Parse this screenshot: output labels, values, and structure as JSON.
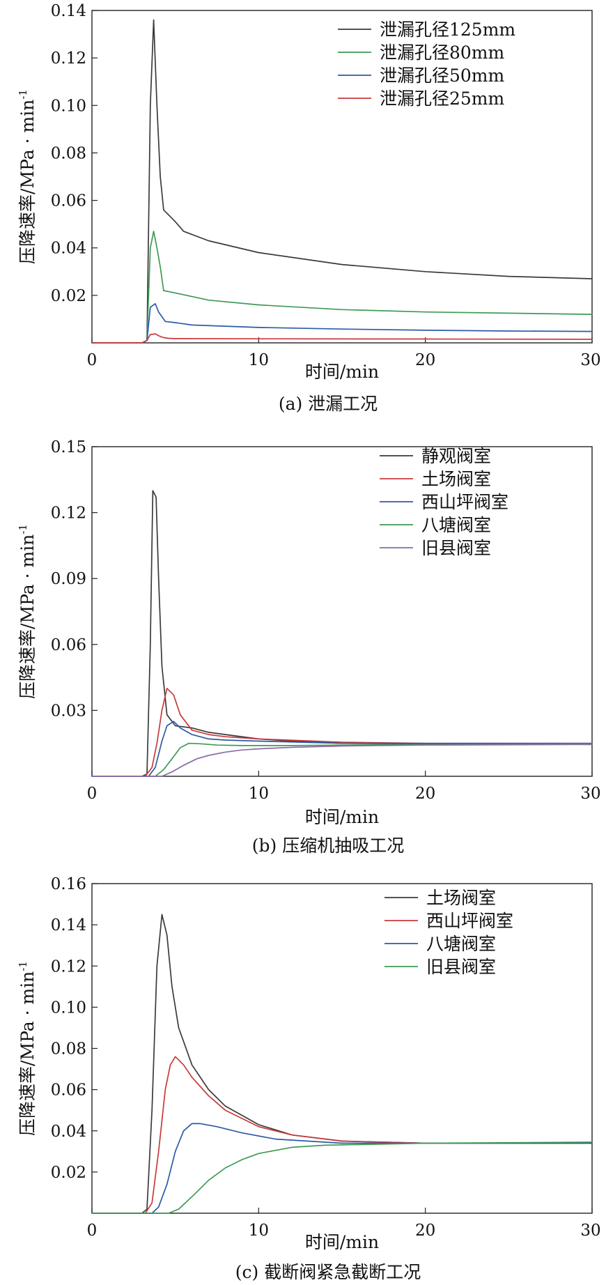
{
  "chart_data": [
    {
      "type": "line",
      "caption": "(a) 泄漏工况",
      "xlabel": "时间/min",
      "ylabel": "压降速率/MPa · min",
      "ylabel_sup": "-1",
      "xlim": [
        0,
        30
      ],
      "ylim": [
        0,
        0.14
      ],
      "xticks": [
        0,
        10,
        20,
        30
      ],
      "yticks": [
        0.02,
        0.04,
        0.06,
        0.08,
        0.1,
        0.12,
        0.14
      ],
      "ytick_labels": [
        "0.02",
        "0.04",
        "0.06",
        "0.08",
        "0.10",
        "0.12",
        "0.14"
      ],
      "legend_position": "top-right",
      "series": [
        {
          "name": "泄漏孔径125mm",
          "color": "#3a3a3a",
          "x": [
            0,
            3.0,
            3.3,
            3.5,
            3.7,
            3.9,
            4.1,
            4.3,
            5,
            5.5,
            7,
            10,
            15,
            20,
            25,
            30
          ],
          "y": [
            0,
            0,
            0.001,
            0.1,
            0.136,
            0.1,
            0.07,
            0.056,
            0.051,
            0.047,
            0.043,
            0.038,
            0.033,
            0.03,
            0.028,
            0.027
          ]
        },
        {
          "name": "泄漏孔径80mm",
          "color": "#3f9a55",
          "x": [
            0,
            3.0,
            3.3,
            3.5,
            3.7,
            3.9,
            4.1,
            4.3,
            5,
            7,
            10,
            15,
            20,
            25,
            30
          ],
          "y": [
            0,
            0,
            0.001,
            0.04,
            0.047,
            0.04,
            0.032,
            0.022,
            0.021,
            0.018,
            0.016,
            0.014,
            0.013,
            0.0125,
            0.012
          ]
        },
        {
          "name": "泄漏孔径50mm",
          "color": "#2c5aa8",
          "x": [
            0,
            3.0,
            3.3,
            3.5,
            3.8,
            4.0,
            4.2,
            4.4,
            5,
            6,
            10,
            15,
            20,
            25,
            30
          ],
          "y": [
            0,
            0,
            0.001,
            0.015,
            0.0165,
            0.013,
            0.011,
            0.009,
            0.0085,
            0.0075,
            0.0065,
            0.0058,
            0.0053,
            0.005,
            0.0048
          ]
        },
        {
          "name": "泄漏孔径25mm",
          "color": "#c83a3a",
          "x": [
            0,
            3.0,
            3.3,
            3.5,
            3.8,
            4.0,
            4.3,
            4.6,
            5,
            10,
            20,
            30
          ],
          "y": [
            0,
            0,
            0.001,
            0.0035,
            0.0038,
            0.003,
            0.0022,
            0.0019,
            0.0018,
            0.0017,
            0.0016,
            0.0015
          ]
        }
      ]
    },
    {
      "type": "line",
      "caption": "(b) 压缩机抽吸工况",
      "xlabel": "时间/min",
      "ylabel": "压降速率/MPa · min",
      "ylabel_sup": "-1",
      "xlim": [
        0,
        30
      ],
      "ylim": [
        0,
        0.15
      ],
      "xticks": [
        0,
        10,
        20,
        30
      ],
      "yticks": [
        0.03,
        0.06,
        0.09,
        0.12,
        0.15
      ],
      "ytick_labels": [
        "0.03",
        "0.06",
        "0.09",
        "0.12",
        "0.15"
      ],
      "legend_position": "top-right",
      "series": [
        {
          "name": "静观阀室",
          "color": "#3a3a3a",
          "x": [
            0,
            3.0,
            3.3,
            3.5,
            3.65,
            3.85,
            4.0,
            4.2,
            4.5,
            5,
            6,
            7,
            8,
            10,
            12,
            15,
            20,
            30
          ],
          "y": [
            0,
            0,
            0.001,
            0.06,
            0.13,
            0.127,
            0.09,
            0.05,
            0.028,
            0.023,
            0.022,
            0.02,
            0.019,
            0.017,
            0.016,
            0.015,
            0.0148,
            0.0145
          ]
        },
        {
          "name": "土场阀室",
          "color": "#c83a3a",
          "x": [
            0,
            3.2,
            3.6,
            3.9,
            4.2,
            4.5,
            4.9,
            5.3,
            6,
            7,
            8,
            10,
            15,
            20,
            30
          ],
          "y": [
            0,
            0,
            0.004,
            0.015,
            0.03,
            0.04,
            0.037,
            0.028,
            0.021,
            0.019,
            0.018,
            0.017,
            0.0155,
            0.015,
            0.015
          ]
        },
        {
          "name": "西山坪阀室",
          "color": "#2c5aa8",
          "x": [
            0,
            3.4,
            3.8,
            4.2,
            4.5,
            4.9,
            5.3,
            6,
            7,
            8,
            10,
            15,
            20,
            30
          ],
          "y": [
            0,
            0,
            0.004,
            0.016,
            0.023,
            0.025,
            0.022,
            0.019,
            0.017,
            0.0165,
            0.016,
            0.015,
            0.015,
            0.015
          ]
        },
        {
          "name": "八塘阀室",
          "color": "#3f9a55",
          "x": [
            0,
            3.8,
            4.3,
            4.8,
            5.3,
            5.8,
            6.5,
            7.5,
            9,
            12,
            15,
            20,
            30
          ],
          "y": [
            0,
            0,
            0.003,
            0.008,
            0.013,
            0.015,
            0.0148,
            0.0142,
            0.014,
            0.014,
            0.0142,
            0.0145,
            0.0148
          ]
        },
        {
          "name": "旧县阀室",
          "color": "#8a6aa8",
          "x": [
            0,
            4.2,
            4.8,
            5.5,
            6.3,
            7,
            8,
            9,
            10,
            12,
            15,
            20,
            30
          ],
          "y": [
            0,
            0,
            0.002,
            0.005,
            0.008,
            0.0095,
            0.011,
            0.012,
            0.0125,
            0.0132,
            0.0138,
            0.0142,
            0.0145
          ]
        }
      ]
    },
    {
      "type": "line",
      "caption": "(c) 截断阀紧急截断工况",
      "xlabel": "时间/min",
      "ylabel": "压降速率/MPa · min",
      "ylabel_sup": "-1",
      "xlim": [
        0,
        30
      ],
      "ylim": [
        0,
        0.16
      ],
      "xticks": [
        0,
        10,
        20,
        30
      ],
      "yticks": [
        0.02,
        0.04,
        0.06,
        0.08,
        0.1,
        0.12,
        0.14,
        0.16
      ],
      "ytick_labels": [
        "0.02",
        "0.04",
        "0.06",
        "0.08",
        "0.10",
        "0.12",
        "0.14",
        "0.16"
      ],
      "legend_position": "top-right",
      "series": [
        {
          "name": "土场阀室",
          "color": "#3a3a3a",
          "x": [
            0,
            3.0,
            3.3,
            3.6,
            3.9,
            4.2,
            4.5,
            4.8,
            5.2,
            6,
            7,
            8,
            10,
            12,
            15,
            20,
            30
          ],
          "y": [
            0,
            0,
            0.002,
            0.05,
            0.12,
            0.145,
            0.135,
            0.11,
            0.09,
            0.072,
            0.06,
            0.052,
            0.043,
            0.038,
            0.035,
            0.034,
            0.034
          ]
        },
        {
          "name": "西山坪阀室",
          "color": "#c83a3a",
          "x": [
            0,
            3.2,
            3.6,
            4.0,
            4.4,
            4.7,
            5.0,
            5.5,
            6,
            7,
            8,
            10,
            12,
            15,
            20,
            30
          ],
          "y": [
            0,
            0,
            0.005,
            0.03,
            0.06,
            0.072,
            0.076,
            0.072,
            0.066,
            0.057,
            0.05,
            0.042,
            0.038,
            0.035,
            0.034,
            0.034
          ]
        },
        {
          "name": "八塘阀室",
          "color": "#2c5aa8",
          "x": [
            0,
            3.6,
            4.0,
            4.5,
            5.0,
            5.5,
            6.0,
            6.5,
            7.5,
            9,
            11,
            15,
            20,
            30
          ],
          "y": [
            0,
            0,
            0.003,
            0.014,
            0.03,
            0.04,
            0.0435,
            0.0435,
            0.042,
            0.039,
            0.036,
            0.034,
            0.034,
            0.034
          ]
        },
        {
          "name": "旧县阀室",
          "color": "#3f9a55",
          "x": [
            0,
            4.6,
            5.2,
            6,
            7,
            8,
            9,
            10,
            12,
            14,
            17,
            20,
            30
          ],
          "y": [
            0,
            0,
            0.002,
            0.008,
            0.016,
            0.022,
            0.026,
            0.029,
            0.032,
            0.033,
            0.0335,
            0.034,
            0.0345
          ]
        }
      ]
    }
  ]
}
